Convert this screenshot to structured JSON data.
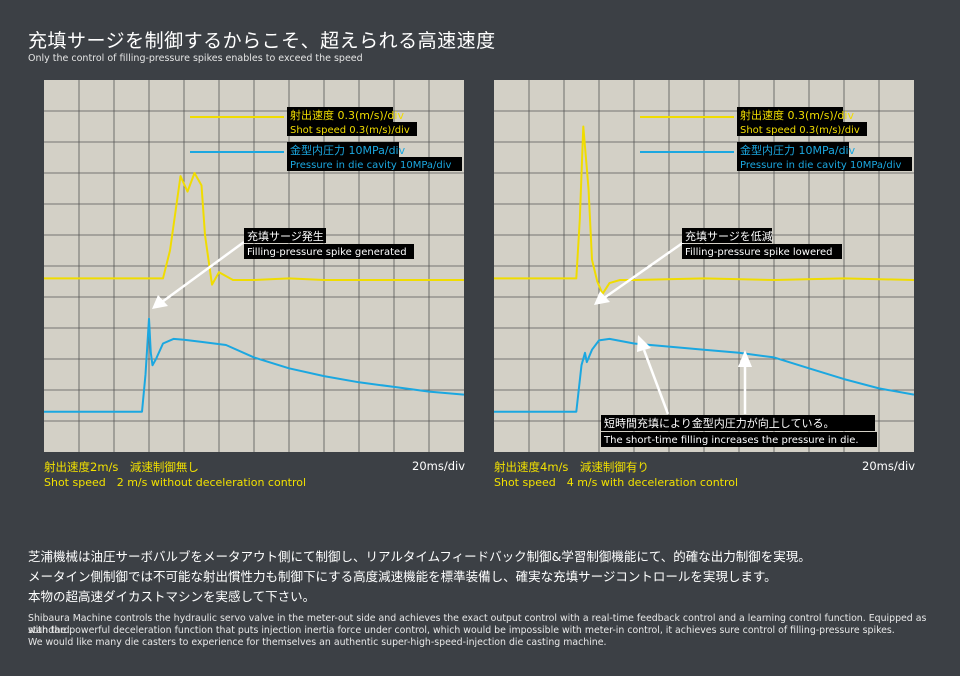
{
  "header": {
    "title": "充填サージを制御するからこそ、超えられる高速速度",
    "subtitle": "Only the control of filling-pressure spikes enables to exceed the speed"
  },
  "colors": {
    "background": "#3c4045",
    "grid_background": "#d3d0c6",
    "grid_line": "#555555",
    "speed_trace": "#f0dc00",
    "pressure_trace": "#1ba7e0",
    "caption": "#f2e100"
  },
  "panels": [
    {
      "legend": {
        "speed_jp": "射出速度 0.3(m/s)/div",
        "speed_en": "Shot speed 0.3(m/s)/div",
        "pressure_jp": "金型内圧力 10MPa/div",
        "pressure_en": "Pressure in die cavity 10MPa/div"
      },
      "annotation": {
        "jp": "充填サージ発生",
        "en": "Filling-pressure spike generated"
      },
      "caption_jp": "射出速度2m/s　減速制御無し",
      "caption_en": "Shot speed　2 m/s without deceleration control",
      "time_div": "20ms/div"
    },
    {
      "legend": {
        "speed_jp": "射出速度 0.3(m/s)/div",
        "speed_en": "Shot speed 0.3(m/s)/div",
        "pressure_jp": "金型内圧力 10MPa/div",
        "pressure_en": "Pressure in die cavity 10MPa/div"
      },
      "annotation": {
        "jp": "充填サージを低減",
        "en": "Filling-pressure spike lowered"
      },
      "annotation2": {
        "jp": "短時間充填により金型内圧力が向上している。",
        "en": "The short-time filling increases the pressure in die."
      },
      "caption_jp": "射出速度4m/s　減速制御有り",
      "caption_en": "Shot speed　4 m/s with deceleration control",
      "time_div": "20ms/div"
    }
  ],
  "description": {
    "jp_lines": [
      "芝浦機械は油圧サーボバルブをメータアウト側にて制御し、リアルタイムフィードバック制御&学習制御機能にて、的確な出力制御を実現。",
      "メータイン側制御では不可能な射出慣性力も制御下にする高度減速機能を標準装備し、確実な充填サージコントロールを実現します。",
      "本物の超高速ダイカストマシンを実感して下さい。"
    ],
    "en_lines": [
      "Shibaura Machine controls the hydraulic servo valve in the meter-out side and achieves the exact output control with a real-time feedback control and a learning control function. Equipped as standard",
      "with the powerful deceleration function that puts injection inertia force under control, which would be impossible with meter-in control, it achieves sure control of filling-pressure spikes.",
      "We would like many die casters to experience for themselves an authentic super-high-speed-injection die casting machine."
    ]
  },
  "chart_data": [
    {
      "type": "line",
      "x_unit": "20ms/div",
      "series": [
        {
          "name": "射出速度 0.3(m/s)/div",
          "color": "#f0dc00",
          "x": [
            0,
            3.4,
            3.6,
            3.9,
            4.1,
            4.3,
            4.5,
            4.6,
            4.8,
            5.0,
            5.4,
            6,
            7,
            8,
            10,
            12
          ],
          "y": [
            5.6,
            5.6,
            6.5,
            8.9,
            8.4,
            9.0,
            8.6,
            7.0,
            5.4,
            5.8,
            5.55,
            5.55,
            5.6,
            5.55,
            5.55,
            5.55
          ]
        },
        {
          "name": "金型内圧力 10MPa/div",
          "color": "#1ba7e0",
          "x": [
            0,
            2.8,
            2.9,
            3.0,
            3.05,
            3.1,
            3.2,
            3.4,
            3.7,
            4.0,
            4.5,
            5.2,
            6,
            7,
            8,
            9,
            10,
            11,
            12
          ],
          "y": [
            1.3,
            1.3,
            2.5,
            4.3,
            3.2,
            2.8,
            3.0,
            3.5,
            3.65,
            3.62,
            3.55,
            3.45,
            3.05,
            2.7,
            2.45,
            2.25,
            2.1,
            1.95,
            1.85
          ]
        }
      ]
    },
    {
      "type": "line",
      "x_unit": "20ms/div",
      "series": [
        {
          "name": "射出速度 0.3(m/s)/div",
          "color": "#f0dc00",
          "x": [
            0,
            2.35,
            2.45,
            2.55,
            2.7,
            2.8,
            2.95,
            3.1,
            3.3,
            3.6,
            4,
            6,
            8,
            10,
            12
          ],
          "y": [
            5.6,
            5.6,
            7.5,
            10.5,
            8.5,
            6.2,
            5.5,
            5.1,
            5.45,
            5.55,
            5.55,
            5.6,
            5.55,
            5.6,
            5.55
          ]
        },
        {
          "name": "金型内圧力 10MPa/div",
          "color": "#1ba7e0",
          "x": [
            0,
            2.35,
            2.5,
            2.6,
            2.65,
            2.8,
            3.0,
            3.3,
            4,
            5,
            6,
            7,
            8,
            9,
            10,
            11,
            12
          ],
          "y": [
            1.3,
            1.3,
            2.8,
            3.2,
            2.9,
            3.3,
            3.6,
            3.65,
            3.5,
            3.4,
            3.3,
            3.2,
            3.05,
            2.7,
            2.35,
            2.05,
            1.85
          ]
        }
      ]
    }
  ]
}
